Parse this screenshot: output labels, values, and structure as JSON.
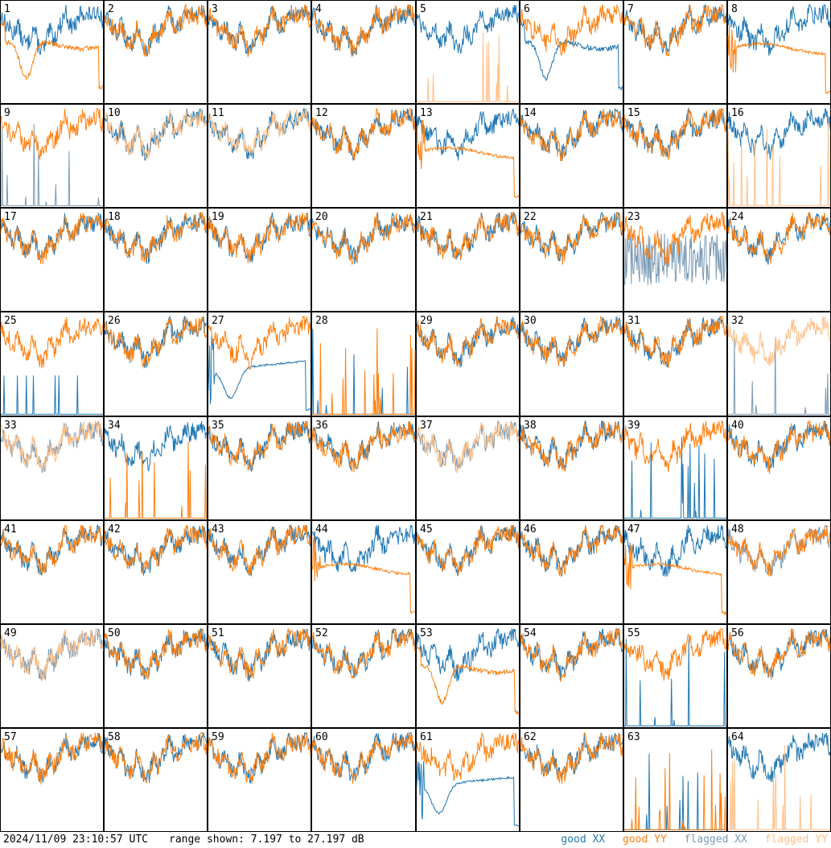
{
  "footer": {
    "timestamp": "2024/11/09 23:10:57 UTC",
    "range_text": "range shown: 7.197 to 27.197 dB"
  },
  "legend": {
    "good_xx": "good XX",
    "good_yy": "good YY",
    "flagged_xx": "flagged XX",
    "flagged_yy": "flagged YY"
  },
  "colors": {
    "good_xx": "#1f77b4",
    "good_yy": "#ff7f0e",
    "flagged_xx": "#7a9ab5",
    "flagged_yy": "#ffbf86"
  },
  "chart_data": {
    "type": "line",
    "layout": "small-multiples 8x8",
    "range_db": [
      7.197,
      27.197
    ],
    "panels": [
      {
        "label": "1",
        "xx": "good",
        "yy": "good",
        "shape_xx": "normal",
        "shape_yy": "dip"
      },
      {
        "label": "2",
        "xx": "good",
        "yy": "good",
        "shape_xx": "normal",
        "shape_yy": "normal"
      },
      {
        "label": "3",
        "xx": "good",
        "yy": "good",
        "shape_xx": "normal",
        "shape_yy": "normal"
      },
      {
        "label": "4",
        "xx": "good",
        "yy": "good",
        "shape_xx": "normal",
        "shape_yy": "normal"
      },
      {
        "label": "5",
        "xx": "good",
        "yy": "flagged",
        "shape_xx": "normal",
        "shape_yy": "spikes"
      },
      {
        "label": "6",
        "xx": "good",
        "yy": "good",
        "shape_xx": "dip",
        "shape_yy": "normal"
      },
      {
        "label": "7",
        "xx": "good",
        "yy": "good",
        "shape_xx": "normal",
        "shape_yy": "normal"
      },
      {
        "label": "8",
        "xx": "good",
        "yy": "good",
        "shape_xx": "normal",
        "shape_yy": "smooth"
      },
      {
        "label": "9",
        "xx": "flagged",
        "yy": "good",
        "shape_xx": "spikes",
        "shape_yy": "normal"
      },
      {
        "label": "10",
        "xx": "good",
        "yy": "flagged",
        "shape_xx": "normal",
        "shape_yy": "normal"
      },
      {
        "label": "11",
        "xx": "good",
        "yy": "flagged",
        "shape_xx": "normal",
        "shape_yy": "normal"
      },
      {
        "label": "12",
        "xx": "good",
        "yy": "good",
        "shape_xx": "normal",
        "shape_yy": "normal"
      },
      {
        "label": "13",
        "xx": "good",
        "yy": "good",
        "shape_xx": "normal",
        "shape_yy": "smooth"
      },
      {
        "label": "14",
        "xx": "good",
        "yy": "good",
        "shape_xx": "normal",
        "shape_yy": "normal"
      },
      {
        "label": "15",
        "xx": "good",
        "yy": "good",
        "shape_xx": "normal",
        "shape_yy": "normal"
      },
      {
        "label": "16",
        "xx": "good",
        "yy": "flagged",
        "shape_xx": "normal",
        "shape_yy": "spikes"
      },
      {
        "label": "17",
        "xx": "good",
        "yy": "good",
        "shape_xx": "normal",
        "shape_yy": "normal"
      },
      {
        "label": "18",
        "xx": "good",
        "yy": "good",
        "shape_xx": "normal",
        "shape_yy": "normal"
      },
      {
        "label": "19",
        "xx": "good",
        "yy": "good",
        "shape_xx": "normal",
        "shape_yy": "normal"
      },
      {
        "label": "20",
        "xx": "good",
        "yy": "good",
        "shape_xx": "normal",
        "shape_yy": "normal"
      },
      {
        "label": "21",
        "xx": "good",
        "yy": "good",
        "shape_xx": "normal",
        "shape_yy": "normal"
      },
      {
        "label": "22",
        "xx": "good",
        "yy": "good",
        "shape_xx": "normal",
        "shape_yy": "normal"
      },
      {
        "label": "23",
        "xx": "flagged",
        "yy": "good",
        "shape_xx": "noisy",
        "shape_yy": "normal"
      },
      {
        "label": "24",
        "xx": "good",
        "yy": "good",
        "shape_xx": "normal",
        "shape_yy": "normal"
      },
      {
        "label": "25",
        "xx": "good",
        "yy": "good",
        "shape_xx": "flat",
        "shape_yy": "normal"
      },
      {
        "label": "26",
        "xx": "good",
        "yy": "good",
        "shape_xx": "normal",
        "shape_yy": "normal"
      },
      {
        "label": "27",
        "xx": "good",
        "yy": "good",
        "shape_xx": "bowl",
        "shape_yy": "normal"
      },
      {
        "label": "28",
        "xx": "good",
        "yy": "good",
        "shape_xx": "spikes",
        "shape_yy": "spikes"
      },
      {
        "label": "29",
        "xx": "good",
        "yy": "good",
        "shape_xx": "normal",
        "shape_yy": "normal"
      },
      {
        "label": "30",
        "xx": "good",
        "yy": "good",
        "shape_xx": "normal",
        "shape_yy": "normal"
      },
      {
        "label": "31",
        "xx": "good",
        "yy": "good",
        "shape_xx": "normal",
        "shape_yy": "normal"
      },
      {
        "label": "32",
        "xx": "flagged",
        "yy": "flagged",
        "shape_xx": "spikes",
        "shape_yy": "normal"
      },
      {
        "label": "33",
        "xx": "flagged",
        "yy": "flagged",
        "shape_xx": "normal",
        "shape_yy": "normal"
      },
      {
        "label": "34",
        "xx": "good",
        "yy": "good",
        "shape_xx": "normal",
        "shape_yy": "spikes"
      },
      {
        "label": "35",
        "xx": "good",
        "yy": "good",
        "shape_xx": "normal",
        "shape_yy": "normal"
      },
      {
        "label": "36",
        "xx": "good",
        "yy": "good",
        "shape_xx": "normal",
        "shape_yy": "normal"
      },
      {
        "label": "37",
        "xx": "flagged",
        "yy": "flagged",
        "shape_xx": "normal",
        "shape_yy": "normal"
      },
      {
        "label": "38",
        "xx": "good",
        "yy": "good",
        "shape_xx": "normal",
        "shape_yy": "normal"
      },
      {
        "label": "39",
        "xx": "good",
        "yy": "good",
        "shape_xx": "spikes",
        "shape_yy": "normal"
      },
      {
        "label": "40",
        "xx": "good",
        "yy": "good",
        "shape_xx": "normal",
        "shape_yy": "normal"
      },
      {
        "label": "41",
        "xx": "good",
        "yy": "good",
        "shape_xx": "normal",
        "shape_yy": "normal"
      },
      {
        "label": "42",
        "xx": "good",
        "yy": "good",
        "shape_xx": "normal",
        "shape_yy": "normal"
      },
      {
        "label": "43",
        "xx": "good",
        "yy": "good",
        "shape_xx": "normal",
        "shape_yy": "normal"
      },
      {
        "label": "44",
        "xx": "good",
        "yy": "good",
        "shape_xx": "normal",
        "shape_yy": "smooth"
      },
      {
        "label": "45",
        "xx": "good",
        "yy": "good",
        "shape_xx": "normal",
        "shape_yy": "normal"
      },
      {
        "label": "46",
        "xx": "good",
        "yy": "good",
        "shape_xx": "normal",
        "shape_yy": "normal"
      },
      {
        "label": "47",
        "xx": "good",
        "yy": "good",
        "shape_xx": "normal",
        "shape_yy": "smooth"
      },
      {
        "label": "48",
        "xx": "flagged",
        "yy": "good",
        "shape_xx": "normal",
        "shape_yy": "normal"
      },
      {
        "label": "49",
        "xx": "flagged",
        "yy": "flagged",
        "shape_xx": "normal",
        "shape_yy": "normal"
      },
      {
        "label": "50",
        "xx": "good",
        "yy": "good",
        "shape_xx": "normal",
        "shape_yy": "normal"
      },
      {
        "label": "51",
        "xx": "good",
        "yy": "good",
        "shape_xx": "normal",
        "shape_yy": "normal"
      },
      {
        "label": "52",
        "xx": "good",
        "yy": "good",
        "shape_xx": "normal",
        "shape_yy": "normal"
      },
      {
        "label": "53",
        "xx": "good",
        "yy": "good",
        "shape_xx": "normal",
        "shape_yy": "dip"
      },
      {
        "label": "54",
        "xx": "good",
        "yy": "good",
        "shape_xx": "normal",
        "shape_yy": "normal"
      },
      {
        "label": "55",
        "xx": "good",
        "yy": "good",
        "shape_xx": "spikes",
        "shape_yy": "normal"
      },
      {
        "label": "56",
        "xx": "good",
        "yy": "good",
        "shape_xx": "normal",
        "shape_yy": "normal"
      },
      {
        "label": "57",
        "xx": "good",
        "yy": "good",
        "shape_xx": "normal",
        "shape_yy": "normal"
      },
      {
        "label": "58",
        "xx": "good",
        "yy": "good",
        "shape_xx": "normal",
        "shape_yy": "normal"
      },
      {
        "label": "59",
        "xx": "good",
        "yy": "good",
        "shape_xx": "normal",
        "shape_yy": "normal"
      },
      {
        "label": "60",
        "xx": "good",
        "yy": "good",
        "shape_xx": "normal",
        "shape_yy": "normal"
      },
      {
        "label": "61",
        "xx": "good",
        "yy": "good",
        "shape_xx": "bowl",
        "shape_yy": "normal"
      },
      {
        "label": "62",
        "xx": "good",
        "yy": "good",
        "shape_xx": "normal",
        "shape_yy": "normal"
      },
      {
        "label": "63",
        "xx": "good",
        "yy": "good",
        "shape_xx": "spikes",
        "shape_yy": "spikes"
      },
      {
        "label": "64",
        "xx": "good",
        "yy": "flagged",
        "shape_xx": "normal",
        "shape_yy": "spikes"
      }
    ]
  }
}
